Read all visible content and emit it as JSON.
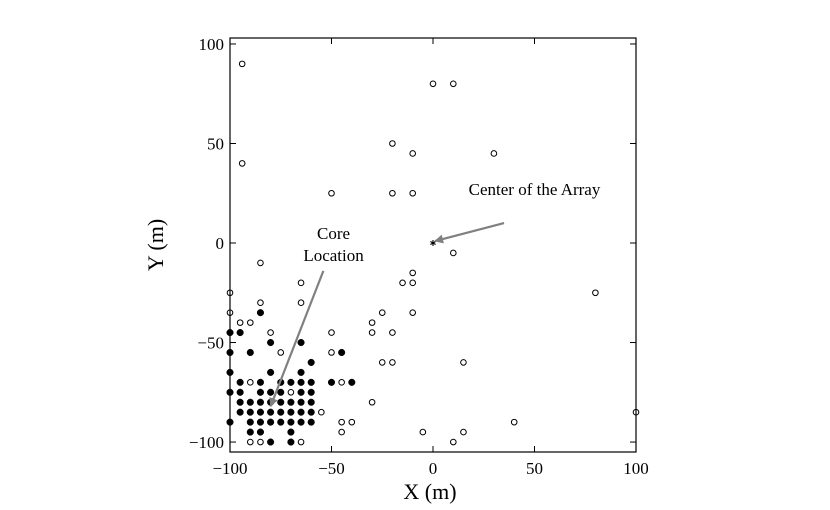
{
  "chart_data": {
    "type": "scatter",
    "xlabel": "X (m)",
    "ylabel": "Y (m)",
    "xlim": [
      -100,
      100
    ],
    "ylim": [
      -105,
      103
    ],
    "xticks": [
      -100,
      -50,
      0,
      50,
      100
    ],
    "yticks": [
      -100,
      -50,
      0,
      50,
      100
    ],
    "xtick_labels": [
      "−100",
      "−50",
      "0",
      "50",
      "100"
    ],
    "ytick_labels": [
      "−100",
      "−50",
      "0",
      "50",
      "100"
    ],
    "grid": false,
    "series": [
      {
        "marker": "open-circle",
        "points": [
          [
            -94,
            90
          ],
          [
            -94,
            40
          ],
          [
            0,
            80
          ],
          [
            10,
            80
          ],
          [
            -20,
            50
          ],
          [
            -10,
            45
          ],
          [
            30,
            45
          ],
          [
            -50,
            25
          ],
          [
            -20,
            25
          ],
          [
            -10,
            25
          ],
          [
            10,
            -5
          ],
          [
            -85,
            -10
          ],
          [
            -10,
            -15
          ],
          [
            -15,
            -20
          ],
          [
            -10,
            -20
          ],
          [
            -65,
            -20
          ],
          [
            80,
            -25
          ],
          [
            -100,
            -25
          ],
          [
            -85,
            -30
          ],
          [
            -65,
            -30
          ],
          [
            -100,
            -35
          ],
          [
            -25,
            -35
          ],
          [
            -10,
            -35
          ],
          [
            -95,
            -40
          ],
          [
            -90,
            -40
          ],
          [
            -30,
            -40
          ],
          [
            -80,
            -45
          ],
          [
            -50,
            -45
          ],
          [
            -30,
            -45
          ],
          [
            -20,
            -45
          ],
          [
            -75,
            -55
          ],
          [
            -50,
            -55
          ],
          [
            -25,
            -60
          ],
          [
            -20,
            -60
          ],
          [
            15,
            -60
          ],
          [
            -90,
            -70
          ],
          [
            -45,
            -70
          ],
          [
            -70,
            -75
          ],
          [
            -30,
            -80
          ],
          [
            -55,
            -85
          ],
          [
            -40,
            -90
          ],
          [
            -45,
            -90
          ],
          [
            40,
            -90
          ],
          [
            100,
            -85
          ],
          [
            -45,
            -95
          ],
          [
            -5,
            -95
          ],
          [
            15,
            -95
          ],
          [
            -90,
            -100
          ],
          [
            -85,
            -100
          ],
          [
            -65,
            -100
          ],
          [
            10,
            -100
          ]
        ]
      },
      {
        "marker": "filled-circle",
        "points": [
          [
            -85,
            -35
          ],
          [
            -100,
            -45
          ],
          [
            -95,
            -45
          ],
          [
            -65,
            -50
          ],
          [
            -100,
            -55
          ],
          [
            -90,
            -55
          ],
          [
            -45,
            -55
          ],
          [
            -80,
            -50
          ],
          [
            -60,
            -60
          ],
          [
            -100,
            -65
          ],
          [
            -80,
            -65
          ],
          [
            -65,
            -65
          ],
          [
            -95,
            -70
          ],
          [
            -85,
            -70
          ],
          [
            -75,
            -70
          ],
          [
            -70,
            -70
          ],
          [
            -65,
            -70
          ],
          [
            -60,
            -70
          ],
          [
            -50,
            -70
          ],
          [
            -40,
            -70
          ],
          [
            -100,
            -75
          ],
          [
            -95,
            -75
          ],
          [
            -85,
            -75
          ],
          [
            -80,
            -75
          ],
          [
            -75,
            -75
          ],
          [
            -65,
            -75
          ],
          [
            -60,
            -75
          ],
          [
            -95,
            -80
          ],
          [
            -90,
            -80
          ],
          [
            -85,
            -80
          ],
          [
            -80,
            -80
          ],
          [
            -75,
            -80
          ],
          [
            -70,
            -80
          ],
          [
            -65,
            -80
          ],
          [
            -60,
            -80
          ],
          [
            -95,
            -85
          ],
          [
            -90,
            -85
          ],
          [
            -85,
            -85
          ],
          [
            -80,
            -85
          ],
          [
            -75,
            -85
          ],
          [
            -70,
            -85
          ],
          [
            -65,
            -85
          ],
          [
            -60,
            -85
          ],
          [
            -100,
            -90
          ],
          [
            -90,
            -90
          ],
          [
            -85,
            -90
          ],
          [
            -80,
            -90
          ],
          [
            -75,
            -90
          ],
          [
            -70,
            -90
          ],
          [
            -65,
            -90
          ],
          [
            -60,
            -90
          ],
          [
            -90,
            -95
          ],
          [
            -85,
            -95
          ],
          [
            -70,
            -95
          ],
          [
            -80,
            -100
          ],
          [
            -70,
            -100
          ]
        ]
      },
      {
        "marker": "star",
        "points": [
          [
            0,
            0
          ]
        ]
      }
    ],
    "annotations": [
      {
        "lines": [
          "Center of the Array"
        ],
        "text_at": [
          50,
          24
        ],
        "arrow_from": [
          35,
          10
        ],
        "arrow_to": [
          1,
          1
        ]
      },
      {
        "lines": [
          "Core",
          "Location"
        ],
        "text_at": [
          -49,
          2
        ],
        "arrow_from": [
          -54,
          -14
        ],
        "arrow_to": [
          -80,
          -82
        ]
      }
    ]
  }
}
